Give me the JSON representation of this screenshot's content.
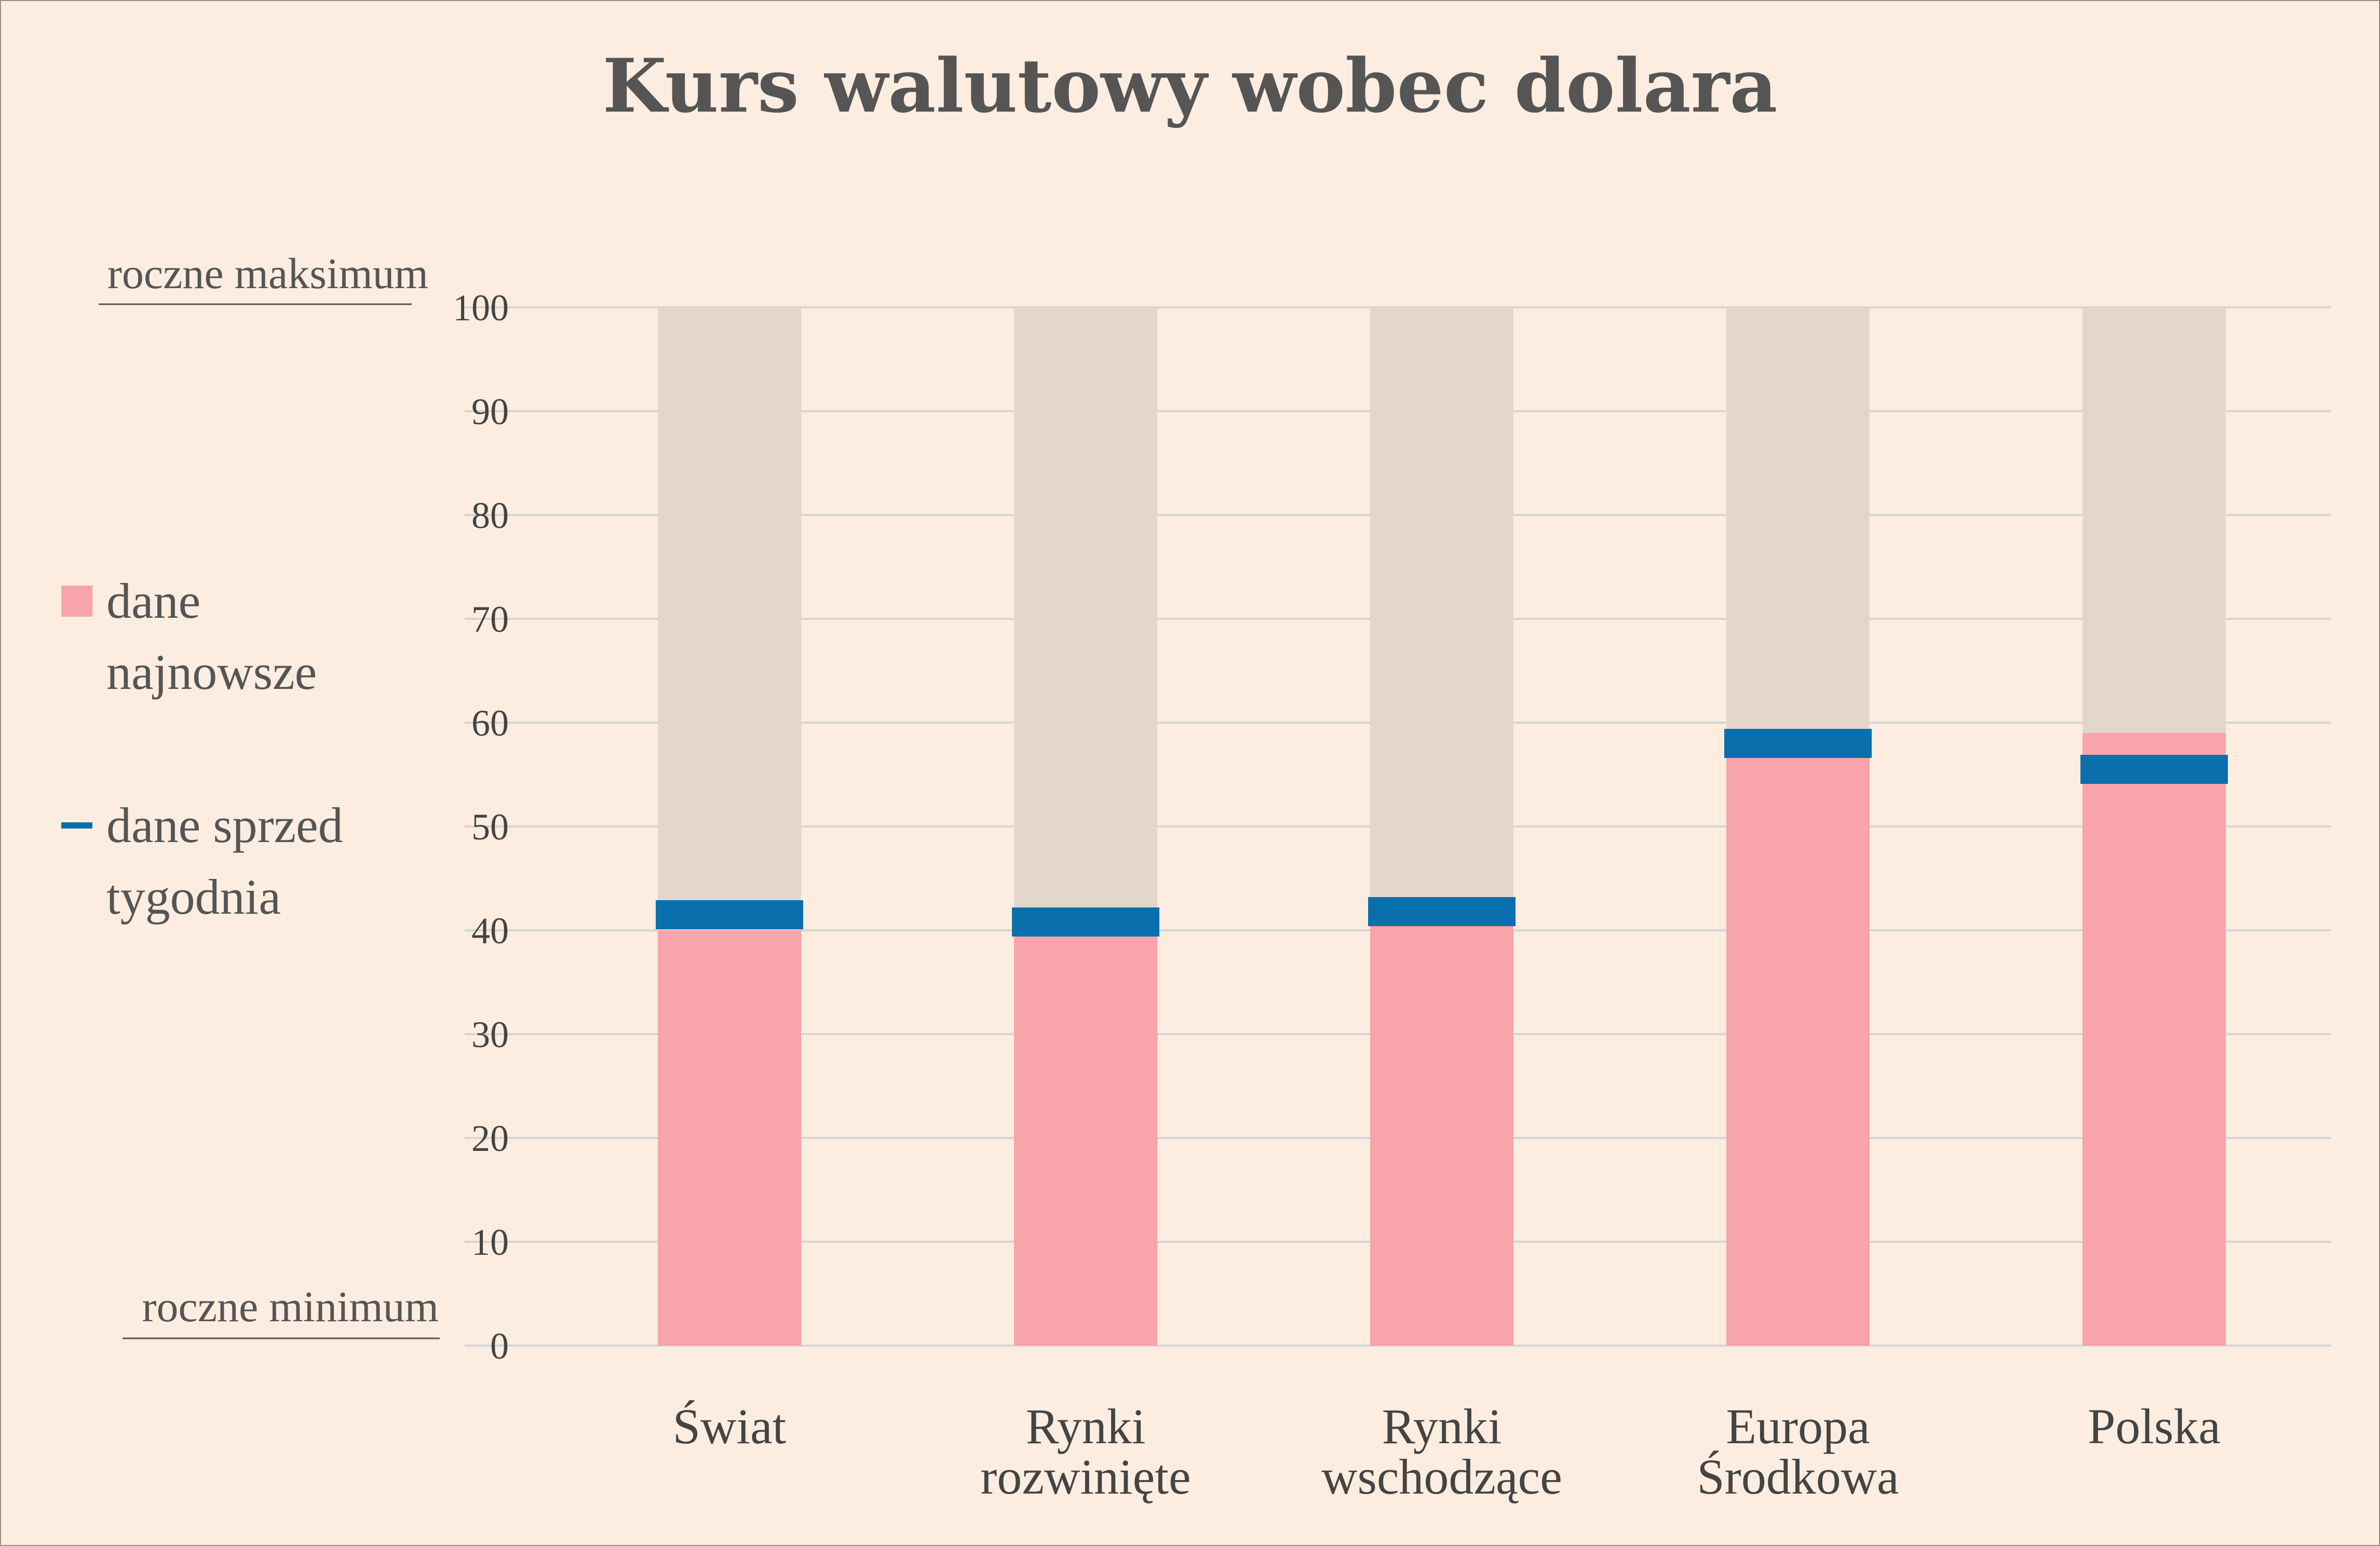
{
  "chart_data": {
    "type": "bar",
    "title": "Kurs walutowy wobec dolara",
    "categories": [
      [
        "Świat"
      ],
      [
        "Rynki",
        "rozwinięte"
      ],
      [
        "Rynki",
        "wschodzące"
      ],
      [
        "Europa",
        "Środkowa"
      ],
      [
        "Polska"
      ]
    ],
    "series": [
      {
        "name": "dane najnowsze",
        "values": [
          40,
          39.5,
          40.5,
          57,
          59
        ]
      },
      {
        "name": "dane sprzed tygodnia",
        "values": [
          41.5,
          40.8,
          41.8,
          58,
          55.5
        ]
      }
    ],
    "range_max": 100,
    "ylim": [
      0,
      100
    ],
    "yticks": [
      0,
      10,
      20,
      30,
      40,
      50,
      60,
      70,
      80,
      90,
      100
    ],
    "grid": true,
    "legend": {
      "position": "left",
      "items": [
        {
          "lines": [
            "dane",
            "najnowsze"
          ],
          "marker": "square"
        },
        {
          "lines": [
            "dane sprzed",
            "tygodnia"
          ],
          "marker": "line"
        }
      ]
    },
    "scale_labels": {
      "max": "roczne maksimum",
      "min": "roczne minimum"
    },
    "colors": {
      "latest": "#f7a4aa",
      "week_ago": "#0a70ad",
      "range": "#e3d7cc",
      "grid": "#d5d5d5",
      "background": "#fcede0"
    }
  }
}
